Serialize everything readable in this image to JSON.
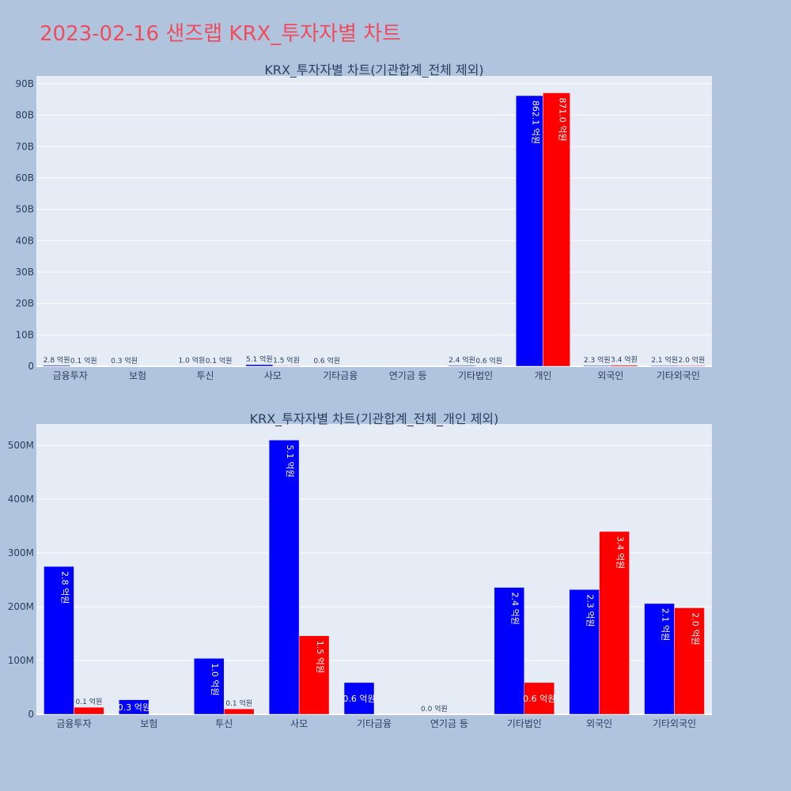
{
  "page": {
    "title": "2023-02-16 샌즈랩 KRX_투자자별 차트",
    "background": "#b0c4de",
    "plot_background": "#e5ecf6",
    "title_color": "#ef4c5e"
  },
  "chart_data": [
    {
      "type": "bar",
      "title": "KRX_투자자별 차트(기관합계_전체 제외)",
      "categories": [
        "금융투자",
        "보험",
        "투신",
        "사모",
        "기타금융",
        "연기금 등",
        "기타법인",
        "개인",
        "외국인",
        "기타외국인"
      ],
      "series": [
        {
          "color": "#0000ff",
          "values": [
            275000000,
            27000000,
            104000000,
            510000000,
            59000000,
            0,
            236000000,
            86210000000,
            232000000,
            206000000
          ],
          "labels": [
            "2.8 억원",
            "0.3 억원",
            "1.0 억원",
            "5.1 억원",
            "0.6 억원",
            "",
            "2.4 억원",
            "862.1 억원",
            "2.3 억원",
            "2.1 억원"
          ]
        },
        {
          "color": "#ff0000",
          "values": [
            13000000,
            0,
            10000000,
            146000000,
            0,
            0,
            59000000,
            87100000000,
            340000000,
            198000000
          ],
          "labels": [
            "0.1 억원",
            "",
            "0.1 억원",
            "1.5 억원",
            "",
            "",
            "0.6 억원",
            "871.0 억원",
            "3.4 억원",
            "2.0 억원"
          ]
        }
      ],
      "yticks": [
        0,
        10000000000,
        20000000000,
        30000000000,
        40000000000,
        50000000000,
        60000000000,
        70000000000,
        80000000000,
        90000000000
      ],
      "ytick_labels": [
        "0",
        "10B",
        "20B",
        "30B",
        "40B",
        "50B",
        "60B",
        "70B",
        "80B",
        "90B"
      ],
      "ylim": [
        0,
        92500000000
      ],
      "grid": true,
      "legend": "none"
    },
    {
      "type": "bar",
      "title": "KRX_투자자별 차트(기관합계_전체_개인 제외)",
      "categories": [
        "금융투자",
        "보험",
        "투신",
        "사모",
        "기타금융",
        "연기금 등",
        "기타법인",
        "외국인",
        "기타외국인"
      ],
      "series": [
        {
          "color": "#0000ff",
          "values": [
            275000000,
            27000000,
            104000000,
            510000000,
            59000000,
            0,
            236000000,
            232000000,
            206000000
          ],
          "labels": [
            "2.8 억원",
            "0.3 억원",
            "1.0 억원",
            "5.1 억원",
            "0.6 억원",
            "0.0 억원",
            "2.4 억원",
            "2.3 억원",
            "2.1 억원"
          ]
        },
        {
          "color": "#ff0000",
          "values": [
            13000000,
            0,
            10000000,
            146000000,
            0,
            0,
            59000000,
            340000000,
            198000000
          ],
          "labels": [
            "0.1 억원",
            "",
            "0.1 억원",
            "1.5 억원",
            "",
            "",
            "0.6 억원",
            "3.4 억원",
            "2.0 억원"
          ]
        }
      ],
      "yticks": [
        0,
        100000000,
        200000000,
        300000000,
        400000000,
        500000000
      ],
      "ytick_labels": [
        "0",
        "100M",
        "200M",
        "300M",
        "400M",
        "500M"
      ],
      "ylim": [
        0,
        540000000
      ],
      "grid": true,
      "legend": "none"
    }
  ]
}
